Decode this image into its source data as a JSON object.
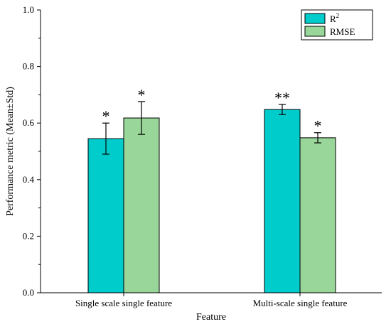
{
  "chart_data": {
    "type": "bar",
    "title": "",
    "xlabel": "Feature",
    "ylabel": "Performance metric (Mean±Std)",
    "categories": [
      "Single scale single feature",
      "Multi-scale single feature"
    ],
    "ylim": [
      0,
      1.0
    ],
    "yticks": [
      "0.0",
      "0.2",
      "0.4",
      "0.6",
      "0.8",
      "1.0"
    ],
    "grid": false,
    "legend_position": "top-right",
    "series": [
      {
        "name": "R",
        "name_superscript": "2",
        "color": "#00cccc",
        "values": [
          0.545,
          0.648
        ],
        "errors": [
          0.055,
          0.018
        ],
        "significance": [
          "*",
          "**"
        ]
      },
      {
        "name": "RMSE",
        "color": "#99d699",
        "values": [
          0.618,
          0.548
        ],
        "errors": [
          0.058,
          0.018
        ],
        "significance": [
          "*",
          "*"
        ]
      }
    ]
  }
}
